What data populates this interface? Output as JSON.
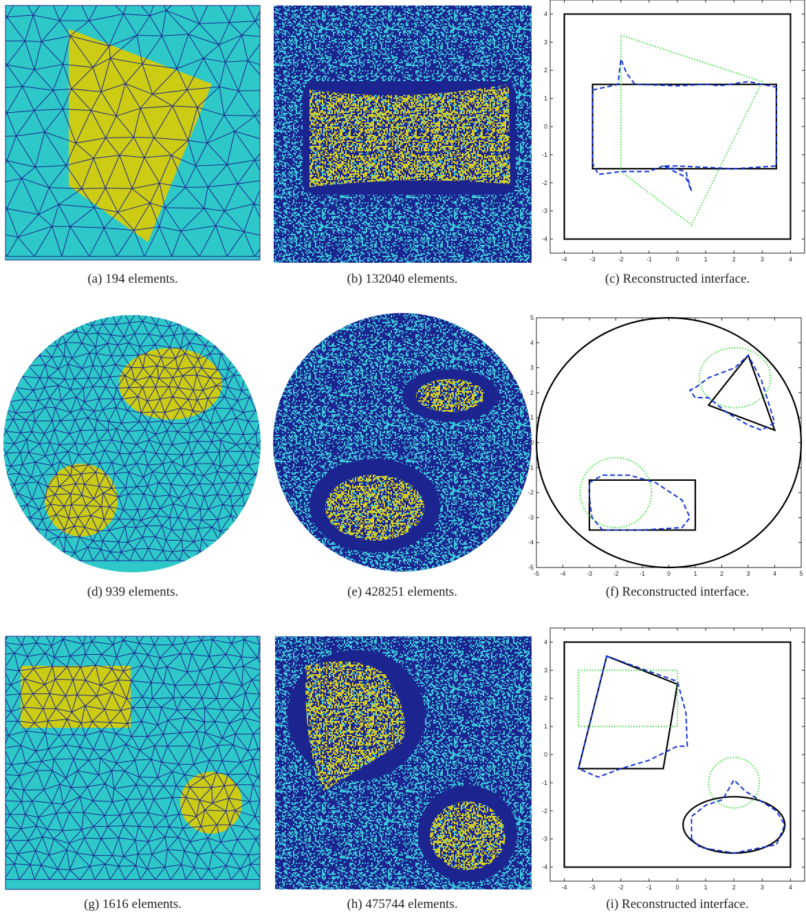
{
  "panels": [
    {
      "caption": "(a) 194 elements."
    },
    {
      "caption": "(b) 132040 elements."
    },
    {
      "caption": "(c) Reconstructed interface.",
      "xlim": [
        -4.5,
        4.5
      ],
      "ylim": [
        -4.5,
        4.5
      ],
      "xticks": [
        -4,
        -3,
        -2,
        -1,
        0,
        1,
        2,
        3,
        4
      ],
      "yticks": [
        -4,
        -3,
        -2,
        -1,
        0,
        1,
        2,
        3,
        4
      ],
      "curves": [
        {
          "color": "#000000",
          "style": "solid",
          "points": [
            [
              -4,
              -4
            ],
            [
              4,
              -4
            ],
            [
              4,
              4
            ],
            [
              -4,
              4
            ]
          ]
        },
        {
          "color": "#000000",
          "style": "solid",
          "points": [
            [
              -3,
              -1.5
            ],
            [
              3.5,
              -1.5
            ],
            [
              3.5,
              1.5
            ],
            [
              -3,
              1.5
            ]
          ]
        },
        {
          "color": "#33dd33",
          "style": "dotted",
          "points": [
            [
              -2,
              3.25
            ],
            [
              3,
              1.6
            ],
            [
              0.5,
              -3.5
            ],
            [
              -2,
              -1.6
            ]
          ]
        },
        {
          "color": "#1133dd",
          "style": "dashed",
          "points": [
            [
              -3,
              1.3
            ],
            [
              -2.1,
              1.5
            ],
            [
              -2,
              2.4
            ],
            [
              -1.8,
              1.9
            ],
            [
              -1.5,
              1.5
            ],
            [
              0,
              1.45
            ],
            [
              1,
              1.5
            ],
            [
              1.5,
              1.45
            ],
            [
              2.5,
              1.6
            ],
            [
              3.5,
              1.4
            ],
            [
              3.5,
              -1.4
            ],
            [
              2,
              -1.5
            ],
            [
              1,
              -1.45
            ],
            [
              0,
              -1.4
            ],
            [
              -0.5,
              -1.4
            ],
            [
              0.3,
              -1.6
            ],
            [
              0.5,
              -2.3
            ],
            [
              0.3,
              -1.8
            ],
            [
              -0.5,
              -1.4
            ],
            [
              -1,
              -1.6
            ],
            [
              -2,
              -1.6
            ],
            [
              -2.8,
              -1.7
            ],
            [
              -3,
              -1.3
            ]
          ]
        }
      ]
    },
    {
      "caption": "(d) 939 elements."
    },
    {
      "caption": "(e) 428251 elements."
    },
    {
      "caption": "(f) Reconstructed interface.",
      "xlim": [
        -5,
        5
      ],
      "ylim": [
        -5,
        5
      ],
      "xticks": [
        -5,
        -4,
        -3,
        -2,
        -1,
        0,
        1,
        2,
        3,
        4,
        5
      ],
      "yticks": [
        -5,
        -4,
        -3,
        -2,
        -1,
        0,
        1,
        2,
        3,
        4,
        5
      ],
      "curves": [
        {
          "color": "#000000",
          "style": "solid",
          "ellipse": [
            0,
            0,
            5,
            5
          ]
        },
        {
          "color": "#000000",
          "style": "solid",
          "points": [
            [
              1.5,
              1.5
            ],
            [
              3,
              3.5
            ],
            [
              4,
              0.5
            ]
          ]
        },
        {
          "color": "#000000",
          "style": "solid",
          "points": [
            [
              -3,
              -3.5
            ],
            [
              1,
              -3.5
            ],
            [
              1,
              -1.5
            ],
            [
              -3,
              -1.5
            ]
          ]
        },
        {
          "color": "#33dd33",
          "style": "dotted",
          "ellipse": [
            2.5,
            2.6,
            1.35,
            1.2
          ]
        },
        {
          "color": "#33dd33",
          "style": "dotted",
          "ellipse": [
            -2,
            -2,
            1.35,
            1.4
          ]
        },
        {
          "color": "#1133dd",
          "style": "dashed",
          "points": [
            [
              1,
              2.2
            ],
            [
              1.5,
              2.6
            ],
            [
              2.5,
              3
            ],
            [
              3,
              3.5
            ],
            [
              3.5,
              2.5
            ],
            [
              4,
              0.8
            ],
            [
              3.5,
              0.5
            ],
            [
              3,
              0.7
            ],
            [
              2.2,
              1.2
            ],
            [
              1.5,
              1.8
            ],
            [
              1,
              1.8
            ],
            [
              0.8,
              2.1
            ]
          ]
        },
        {
          "color": "#1133dd",
          "style": "dashed",
          "points": [
            [
              -3,
              -1.6
            ],
            [
              -2.5,
              -1.3
            ],
            [
              -1.5,
              -1.3
            ],
            [
              -0.5,
              -1.6
            ],
            [
              0.5,
              -2.3
            ],
            [
              0.8,
              -3
            ],
            [
              0.5,
              -3.4
            ],
            [
              -1,
              -3.5
            ],
            [
              -2.5,
              -3.5
            ],
            [
              -2.9,
              -3
            ],
            [
              -3,
              -2.2
            ]
          ]
        }
      ]
    },
    {
      "caption": "(g) 1616 elements."
    },
    {
      "caption": "(h) 475744 elements."
    },
    {
      "caption": "(i) Reconstructed interface.",
      "xlim": [
        -4.5,
        4.5
      ],
      "ylim": [
        -4.5,
        4.5
      ],
      "xticks": [
        -4,
        -3,
        -2,
        -1,
        0,
        1,
        2,
        3,
        4
      ],
      "yticks": [
        -4,
        -3,
        -2,
        -1,
        0,
        1,
        2,
        3,
        4
      ],
      "curves": [
        {
          "color": "#000000",
          "style": "solid",
          "points": [
            [
              -4,
              -4
            ],
            [
              4,
              -4
            ],
            [
              4,
              4
            ],
            [
              -4,
              4
            ]
          ]
        },
        {
          "color": "#000000",
          "style": "solid",
          "points": [
            [
              -2.5,
              3.5
            ],
            [
              0,
              2.5
            ],
            [
              -0.5,
              -0.5
            ],
            [
              -3.5,
              -0.5
            ]
          ]
        },
        {
          "color": "#000000",
          "style": "solid",
          "ellipse": [
            2,
            -2.5,
            1.8,
            1
          ]
        },
        {
          "color": "#33dd33",
          "style": "dotted",
          "points": [
            [
              -3.5,
              1
            ],
            [
              0,
              1
            ],
            [
              0,
              3
            ],
            [
              -3.5,
              3
            ]
          ]
        },
        {
          "color": "#33dd33",
          "style": "dotted",
          "ellipse": [
            2,
            -1,
            0.9,
            0.9
          ]
        },
        {
          "color": "#1133dd",
          "style": "dashed",
          "points": [
            [
              -2.5,
              3.5
            ],
            [
              0,
              2.6
            ],
            [
              0.3,
              1.5
            ],
            [
              0.35,
              0.3
            ],
            [
              0,
              0.3
            ],
            [
              -1,
              -0.2
            ],
            [
              -2,
              -0.5
            ],
            [
              -2.8,
              -0.8
            ],
            [
              -3.5,
              -0.5
            ],
            [
              -3,
              1.5
            ]
          ]
        },
        {
          "color": "#1133dd",
          "style": "dashed",
          "points": [
            [
              0.5,
              -3
            ],
            [
              0.5,
              -2.2
            ],
            [
              1,
              -1.8
            ],
            [
              1.6,
              -1.6
            ],
            [
              2,
              -0.9
            ],
            [
              2.4,
              -1.3
            ],
            [
              3.5,
              -2
            ],
            [
              3.8,
              -2.5
            ],
            [
              3.5,
              -3.2
            ],
            [
              2,
              -3.5
            ],
            [
              0.8,
              -3.3
            ]
          ]
        }
      ]
    }
  ]
}
